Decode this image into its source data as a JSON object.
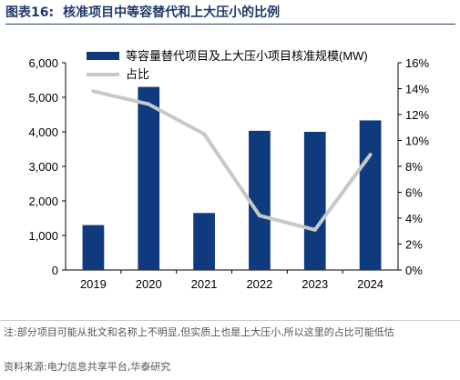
{
  "figure": {
    "label": "图表16:",
    "title": "核准项目中等容替代和上大压小的比例"
  },
  "chart_data": {
    "type": "bar",
    "categories": [
      "2019",
      "2020",
      "2021",
      "2022",
      "2023",
      "2024"
    ],
    "series": [
      {
        "name": "等容量替代项目及上大压小项目核准规模(MW)",
        "kind": "bar",
        "axis": "left",
        "values": [
          1300,
          5300,
          1650,
          4030,
          4000,
          4330
        ]
      },
      {
        "name": "占比",
        "kind": "line",
        "axis": "right",
        "values": [
          13.8,
          12.8,
          10.5,
          4.2,
          3.1,
          8.9
        ]
      }
    ],
    "ylim_left": [
      0,
      6000
    ],
    "ylim_right": [
      0,
      16
    ],
    "left_ticks": [
      "0",
      "1,000",
      "2,000",
      "3,000",
      "4,000",
      "5,000",
      "6,000"
    ],
    "right_ticks": [
      "0%",
      "2%",
      "4%",
      "6%",
      "8%",
      "10%",
      "12%",
      "14%",
      "16%"
    ],
    "legend_position": "top",
    "grid": false,
    "colors": {
      "bar": "#0f3a7d",
      "line": "#c8c8c8"
    }
  },
  "notes": {
    "note": "注:部分项目可能从批文和名称上不明显,但实质上也是上大压小,所以这里的占比可能低估",
    "source": "资料来源:电力信息共享平台,华泰研究"
  }
}
